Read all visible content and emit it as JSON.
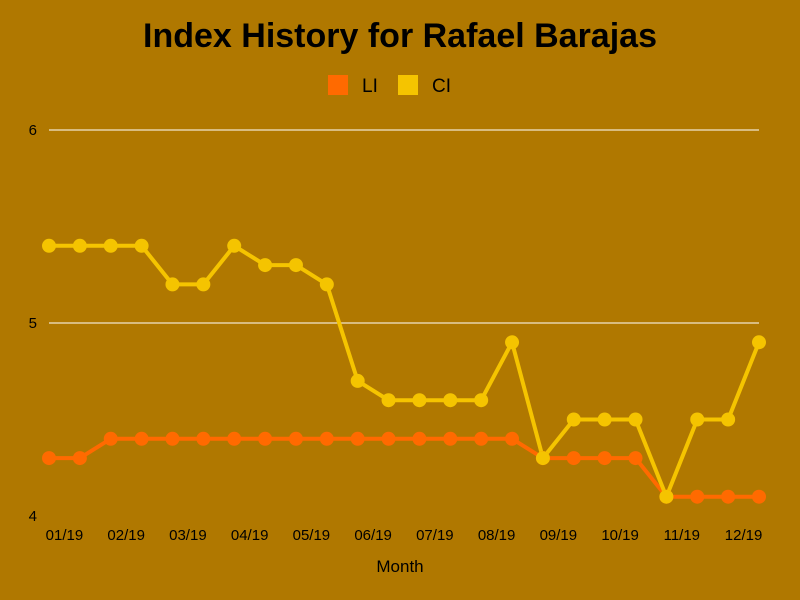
{
  "chart_data": {
    "type": "line",
    "title": "Index History for Rafael Barajas",
    "xlabel": "Month",
    "ylabel": "",
    "ylim": [
      4,
      6
    ],
    "yticks": [
      "4",
      "5",
      "6"
    ],
    "grid": true,
    "legend_position": "top-center",
    "x_tick_labels": [
      "01/19",
      "02/19",
      "03/19",
      "04/19",
      "05/19",
      "06/19",
      "07/19",
      "08/19",
      "09/19",
      "10/19",
      "11/19",
      "12/19"
    ],
    "x": [
      "01/19 a",
      "01/19 b",
      "02/19 a",
      "02/19 b",
      "03/19 a",
      "03/19 b",
      "04/19 a",
      "04/19 b",
      "05/19 a",
      "05/19 b",
      "06/19 a",
      "06/19 b",
      "07/19 a",
      "07/19 b",
      "08/19 a",
      "08/19 b",
      "09/19 a",
      "09/19 b",
      "10/19 a",
      "10/19 b",
      "11/19 a",
      "11/19 b",
      "12/19 a",
      "12/19 b"
    ],
    "series": [
      {
        "name": "LI",
        "color": "#ff6a00",
        "values": [
          4.3,
          4.3,
          4.4,
          4.4,
          4.4,
          4.4,
          4.4,
          4.4,
          4.4,
          4.4,
          4.4,
          4.4,
          4.4,
          4.4,
          4.4,
          4.4,
          4.3,
          4.3,
          4.3,
          4.3,
          4.1,
          4.1,
          4.1,
          4.1
        ]
      },
      {
        "name": "CI",
        "color": "#f5c400",
        "values": [
          5.4,
          5.4,
          5.4,
          5.4,
          5.2,
          5.2,
          5.4,
          5.3,
          5.3,
          5.2,
          4.7,
          4.6,
          4.6,
          4.6,
          4.6,
          4.9,
          4.3,
          4.5,
          4.5,
          4.5,
          4.1,
          4.5,
          4.5,
          4.9
        ]
      }
    ]
  },
  "colors": {
    "background": "#b07800",
    "grid": "#ffffff",
    "text": "#000000"
  }
}
